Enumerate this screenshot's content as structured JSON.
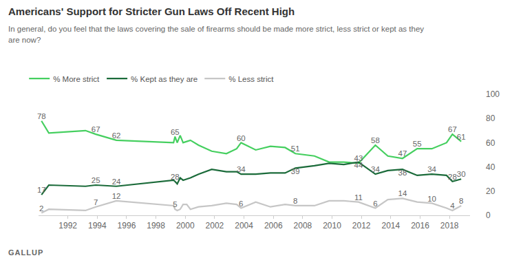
{
  "chart_data": {
    "type": "line",
    "title": "Americans' Support for Stricter Gun Laws Off Recent High",
    "subtitle": "In general, do you feel that the laws covering the sale of firearms should be made more strict, less strict or kept as they are now?",
    "source": "GALLUP",
    "x": [
      1990.2,
      1990.7,
      1993.2,
      1993.9,
      1995.3,
      1999.2,
      1999.3,
      1999.45,
      1999.65,
      1999.85,
      2000.1,
      2000.35,
      2000.9,
      2001.8,
      2002.8,
      2003.5,
      2003.8,
      2004.8,
      2005.8,
      2006.8,
      2007.5,
      2008.8,
      2009.8,
      2010.8,
      2011.8,
      2012.95,
      2013.8,
      2014.8,
      2015.8,
      2016.8,
      2017.8,
      2018.2,
      2018.8
    ],
    "series": [
      {
        "name": "% More strict",
        "color": "#45cf5f",
        "values": [
          78,
          68,
          70,
          67,
          62,
          60,
          65,
          60,
          66,
          60,
          61,
          62,
          58,
          53,
          51,
          55,
          60,
          54,
          57,
          56,
          51,
          49,
          44,
          44,
          43,
          58,
          49,
          47,
          55,
          55,
          60,
          67,
          61
        ],
        "value_labels": [
          "78",
          null,
          null,
          "67",
          "62",
          null,
          "65",
          null,
          null,
          null,
          null,
          null,
          null,
          null,
          null,
          null,
          "60",
          null,
          null,
          null,
          "51",
          null,
          null,
          null,
          "43",
          "58",
          null,
          "47",
          "55",
          null,
          null,
          "67",
          "61"
        ]
      },
      {
        "name": "% Kept as they are",
        "color": "#1b6b3a",
        "values": [
          17,
          25,
          24,
          25,
          24,
          29,
          28,
          26,
          31,
          29,
          30,
          31,
          34,
          38,
          36,
          36,
          34,
          34,
          35,
          35,
          39,
          41,
          43,
          42,
          44,
          34,
          37,
          38,
          33,
          34,
          33,
          28,
          30
        ],
        "value_labels": [
          "17",
          null,
          null,
          "25",
          "24",
          null,
          "28",
          null,
          null,
          null,
          null,
          null,
          null,
          null,
          null,
          null,
          "34",
          null,
          null,
          null,
          "39",
          null,
          null,
          null,
          "44",
          "34",
          null,
          "38",
          null,
          "34",
          null,
          "28",
          "30"
        ]
      },
      {
        "name": "% Less strict",
        "color": "#c6c6c6",
        "values": [
          2,
          5,
          4,
          7,
          12,
          8,
          5,
          4,
          5,
          9,
          9,
          5,
          7,
          8,
          10,
          9,
          6,
          11,
          7,
          9,
          8,
          8,
          12,
          12,
          11,
          6,
          13,
          14,
          11,
          10,
          6,
          4,
          8
        ],
        "value_labels": [
          "2",
          null,
          null,
          "7",
          "12",
          null,
          "5",
          null,
          null,
          null,
          null,
          null,
          null,
          null,
          null,
          null,
          "6",
          null,
          null,
          null,
          "8",
          null,
          null,
          null,
          "11",
          "6",
          null,
          "14",
          null,
          "10",
          null,
          "4",
          "8"
        ]
      }
    ],
    "xlim": [
      1990,
      2019.4
    ],
    "xticks": [
      1992,
      1994,
      1996,
      1998,
      2000,
      2002,
      2004,
      2006,
      2008,
      2010,
      2012,
      2014,
      2016,
      2018
    ],
    "ylim": [
      0,
      100
    ],
    "yticks": [
      0,
      20,
      40,
      60,
      80,
      100
    ],
    "grid": false,
    "legend": "top-left"
  }
}
